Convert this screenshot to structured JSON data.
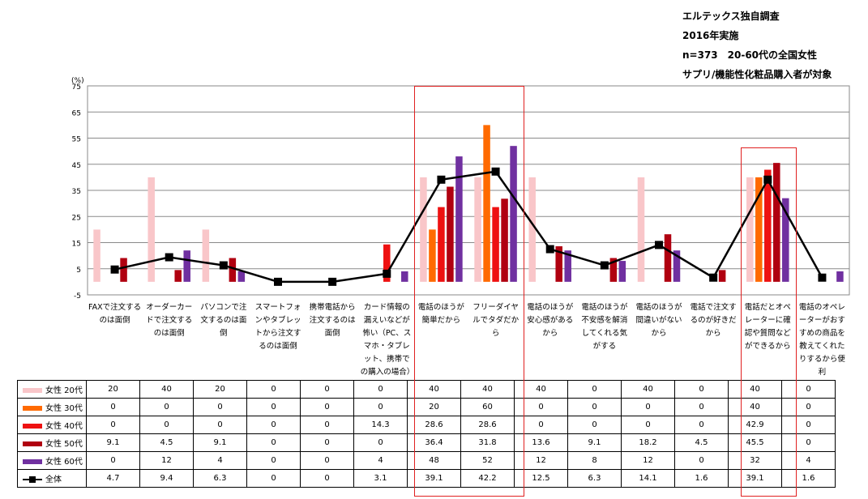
{
  "survey_note": [
    "エルテックス独自調査",
    "2016年実施",
    "n=373　20-60代の全国女性",
    "サプリ/機能性化粧品購入者が対象"
  ],
  "chart_data": {
    "type": "bar",
    "yunit": "(%)",
    "ylim": [
      -5,
      75
    ],
    "yticks": [
      -5,
      5,
      15,
      25,
      35,
      45,
      55,
      65,
      75
    ],
    "grid": true,
    "legend": "table-left",
    "categories": [
      "FAXで注文するのは面倒",
      "オーダーカードで注文するのは面倒",
      "パソコンで注文するのは面倒",
      "スマートフォンやタブレットから注文するのは面倒",
      "携帯電話から注文するのは面倒",
      "カード情報の漏えいなどが怖い（PC、スマホ・タブレット、携帯での購入の場合）",
      "電話のほうが簡単だから",
      "フリーダイヤルでタダだから",
      "電話のほうが安心感があるから",
      "電話のほうが不安感を解消してくれる気がする",
      "電話のほうが間違いがないから",
      "電話で注文するのが好きだから",
      "電話だとオペレーターに確認や質問などができるから",
      "電話のオペレーターがおすすめの商品を教えてくれたりするから便利"
    ],
    "series": [
      {
        "name": "女性 20代",
        "color": "#f9c6c9",
        "values": [
          20,
          40,
          20,
          0,
          0,
          0,
          40,
          40,
          40,
          0,
          40,
          0,
          40,
          0
        ]
      },
      {
        "name": "女性 30代",
        "color": "#ff6a00",
        "values": [
          0,
          0,
          0,
          0,
          0,
          0,
          20,
          60,
          0,
          0,
          0,
          0,
          40,
          0
        ]
      },
      {
        "name": "女性 40代",
        "color": "#ee1111",
        "values": [
          0,
          0,
          0,
          0,
          0,
          14.3,
          28.6,
          28.6,
          0,
          0,
          0,
          0,
          42.9,
          0
        ]
      },
      {
        "name": "女性 50代",
        "color": "#b00010",
        "values": [
          9.1,
          4.5,
          9.1,
          0,
          0,
          0,
          36.4,
          31.8,
          13.6,
          9.1,
          18.2,
          4.5,
          45.5,
          0
        ]
      },
      {
        "name": "女性 60代",
        "color": "#7030a0",
        "values": [
          0,
          12,
          4,
          0,
          0,
          4,
          48,
          52,
          12,
          8,
          12,
          0,
          32,
          4
        ]
      }
    ],
    "line": {
      "name": "全体",
      "color": "#000000",
      "values": [
        4.7,
        9.4,
        6.3,
        0,
        0,
        3.1,
        39.1,
        42.2,
        12.5,
        6.3,
        14.1,
        1.6,
        39.1,
        1.6
      ]
    },
    "highlighted_categories": [
      6,
      7,
      12
    ]
  }
}
